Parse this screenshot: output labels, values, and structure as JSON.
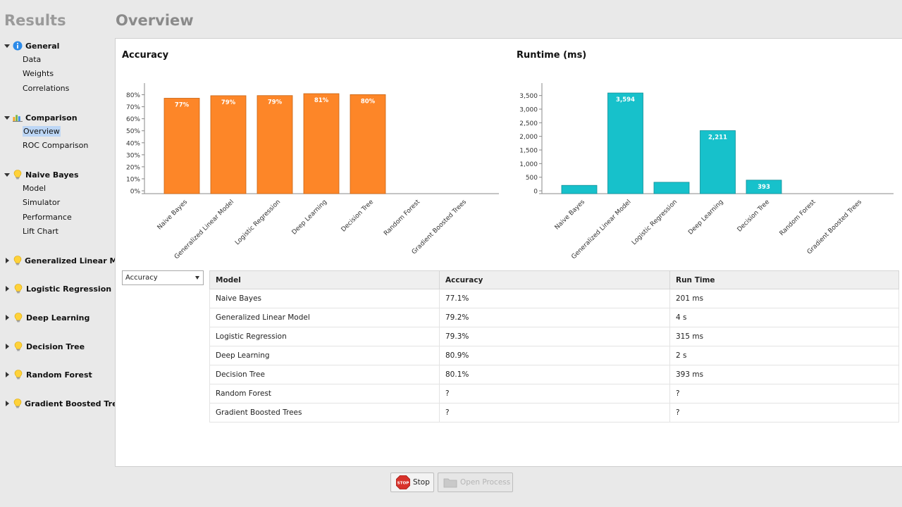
{
  "sidebar": {
    "title": "Results",
    "groups": [
      {
        "label": "General",
        "icon": "info-icon",
        "expanded": true,
        "items": [
          "Data",
          "Weights",
          "Correlations"
        ]
      },
      {
        "label": "Comparison",
        "icon": "comparison-chart-icon",
        "expanded": true,
        "items": [
          "Overview",
          "ROC Comparison"
        ]
      },
      {
        "label": "Naive Bayes",
        "icon": "lightbulb-icon",
        "expanded": true,
        "items": [
          "Model",
          "Simulator",
          "Performance",
          "Lift Chart"
        ]
      },
      {
        "label": "Generalized Linear Model",
        "icon": "lightbulb-icon",
        "expanded": false,
        "items": []
      },
      {
        "label": "Logistic Regression",
        "icon": "lightbulb-icon",
        "expanded": false,
        "items": []
      },
      {
        "label": "Deep Learning",
        "icon": "lightbulb-icon",
        "expanded": false,
        "items": []
      },
      {
        "label": "Decision Tree",
        "icon": "lightbulb-icon",
        "expanded": false,
        "items": []
      },
      {
        "label": "Random Forest",
        "icon": "lightbulb-icon",
        "expanded": false,
        "items": []
      },
      {
        "label": "Gradient Boosted Trees",
        "icon": "lightbulb-icon",
        "expanded": false,
        "items": []
      }
    ],
    "selected_item": "Overview"
  },
  "header": {
    "title": "Overview"
  },
  "chart_data": [
    {
      "type": "bar",
      "title": "Accuracy",
      "categories": [
        "Naive Bayes",
        "Generalized Linear Model",
        "Logistic Regression",
        "Deep Learning",
        "Decision Tree",
        "Random Forest",
        "Gradient Boosted Trees"
      ],
      "values": [
        77.1,
        79.2,
        79.3,
        80.9,
        80.1,
        null,
        null
      ],
      "data_labels": [
        "77%",
        "79%",
        "79%",
        "81%",
        "80%",
        "",
        ""
      ],
      "yticks": [
        "0%",
        "10%",
        "20%",
        "30%",
        "40%",
        "50%",
        "60%",
        "70%",
        "80%"
      ],
      "ylim": [
        0,
        85
      ],
      "color": "#fd8628"
    },
    {
      "type": "bar",
      "title": "Runtime (ms)",
      "categories": [
        "Naive Bayes",
        "Generalized Linear Model",
        "Logistic Regression",
        "Deep Learning",
        "Decision Tree",
        "Random Forest",
        "Gradient Boosted Trees"
      ],
      "values": [
        201,
        3594,
        315,
        2211,
        393,
        null,
        null
      ],
      "data_labels": [
        "",
        "3,594",
        "",
        "2,211",
        "393",
        "",
        ""
      ],
      "yticks": [
        "0",
        "500",
        "1,000",
        "1,500",
        "2,000",
        "2,500",
        "3,000",
        "3,500"
      ],
      "ylim": [
        0,
        3750
      ],
      "color": "#17c1cb"
    }
  ],
  "selector": {
    "value": "Accuracy"
  },
  "table": {
    "headers": [
      "Model",
      "Accuracy",
      "Run Time"
    ],
    "rows": [
      [
        "Naive Bayes",
        "77.1%",
        "201 ms"
      ],
      [
        "Generalized Linear Model",
        "79.2%",
        "4 s"
      ],
      [
        "Logistic Regression",
        "79.3%",
        "315 ms"
      ],
      [
        "Deep Learning",
        "80.9%",
        "2 s"
      ],
      [
        "Decision Tree",
        "80.1%",
        "393 ms"
      ],
      [
        "Random Forest",
        "?",
        "?"
      ],
      [
        "Gradient Boosted Trees",
        "?",
        "?"
      ]
    ]
  },
  "buttons": {
    "stop_label": "Stop",
    "stop_icon_text": "STOP",
    "open_process_label": "Open Process"
  }
}
